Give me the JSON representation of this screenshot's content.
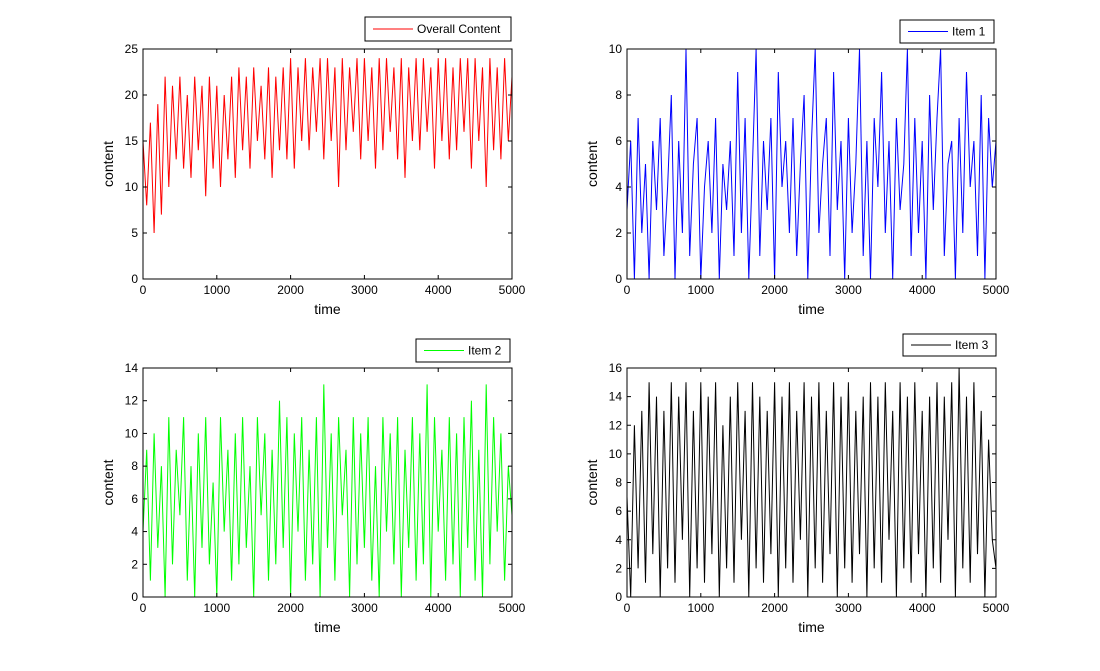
{
  "chart_data": [
    {
      "type": "line",
      "title": "",
      "xlabel": "time",
      "ylabel": "content",
      "xlim": [
        0,
        5000
      ],
      "ylim": [
        0,
        25
      ],
      "xticks": [
        0,
        1000,
        2000,
        3000,
        4000,
        5000
      ],
      "yticks": [
        0,
        5,
        10,
        15,
        20,
        25
      ],
      "legend": "top-right",
      "series": [
        {
          "name": "Overall Content",
          "color": "#ff0000",
          "values": [
            15,
            8,
            17,
            5,
            19,
            7,
            22,
            10,
            21,
            13,
            22,
            12,
            20,
            11,
            22,
            14,
            21,
            9,
            22,
            12,
            21,
            10,
            20,
            13,
            22,
            11,
            23,
            14,
            22,
            12,
            23,
            15,
            21,
            13,
            23,
            11,
            22,
            14,
            23,
            13,
            24,
            12,
            23,
            15,
            24,
            14,
            23,
            16,
            24,
            13,
            24,
            15,
            23,
            10,
            24,
            14,
            23,
            16,
            24,
            13,
            24,
            15,
            23,
            12,
            24,
            14,
            24,
            16,
            23,
            13,
            24,
            11,
            23,
            15,
            24,
            14,
            24,
            16,
            23,
            12,
            24,
            15,
            24,
            13,
            23,
            14,
            24,
            16,
            24,
            12,
            24,
            15,
            23,
            10,
            24,
            14,
            23,
            13,
            24,
            15,
            22
          ]
        }
      ]
    },
    {
      "type": "line",
      "title": "",
      "xlabel": "time",
      "ylabel": "content",
      "xlim": [
        0,
        5000
      ],
      "ylim": [
        0,
        10
      ],
      "xticks": [
        0,
        1000,
        2000,
        3000,
        4000,
        5000
      ],
      "yticks": [
        0,
        2,
        4,
        6,
        8,
        10
      ],
      "legend": "top-right",
      "series": [
        {
          "name": "Item 1",
          "color": "#0000ff",
          "values": [
            3,
            6,
            0,
            7,
            2,
            5,
            0,
            6,
            3,
            7,
            1,
            4,
            8,
            0,
            6,
            2,
            10,
            1,
            5,
            7,
            0,
            4,
            6,
            2,
            7,
            0,
            5,
            3,
            6,
            1,
            9,
            2,
            7,
            0,
            5,
            10,
            1,
            6,
            3,
            7,
            0,
            9,
            4,
            6,
            2,
            7,
            1,
            5,
            8,
            0,
            6,
            10,
            2,
            5,
            7,
            1,
            9,
            3,
            6,
            0,
            7,
            2,
            5,
            10,
            1,
            6,
            0,
            7,
            4,
            9,
            2,
            6,
            0,
            7,
            3,
            5,
            10,
            1,
            7,
            2,
            6,
            0,
            8,
            3,
            7,
            10,
            1,
            5,
            6,
            0,
            7,
            2,
            9,
            4,
            6,
            1,
            8,
            0,
            7,
            4,
            6
          ]
        }
      ]
    },
    {
      "type": "line",
      "title": "",
      "xlabel": "time",
      "ylabel": "content",
      "xlim": [
        0,
        5000
      ],
      "ylim": [
        0,
        14
      ],
      "xticks": [
        0,
        1000,
        2000,
        3000,
        4000,
        5000
      ],
      "yticks": [
        0,
        2,
        4,
        6,
        8,
        10,
        12,
        14
      ],
      "legend": "top-right",
      "series": [
        {
          "name": "Item 2",
          "color": "#00ff00",
          "values": [
            4,
            9,
            1,
            10,
            3,
            8,
            0,
            11,
            2,
            9,
            5,
            11,
            1,
            8,
            0,
            10,
            3,
            11,
            2,
            7,
            0,
            11,
            4,
            9,
            1,
            10,
            2,
            11,
            3,
            8,
            0,
            11,
            5,
            10,
            1,
            9,
            2,
            12,
            3,
            11,
            0,
            10,
            4,
            11,
            1,
            9,
            2,
            11,
            0,
            13,
            3,
            10,
            1,
            11,
            5,
            9,
            0,
            11,
            2,
            10,
            3,
            11,
            1,
            8,
            0,
            11,
            4,
            10,
            2,
            11,
            0,
            9,
            3,
            11,
            1,
            10,
            2,
            13,
            0,
            11,
            4,
            9,
            1,
            11,
            2,
            10,
            0,
            11,
            3,
            12,
            1,
            9,
            0,
            13,
            2,
            11,
            4,
            10,
            1,
            8,
            5
          ]
        }
      ]
    },
    {
      "type": "line",
      "title": "",
      "xlabel": "time",
      "ylabel": "content",
      "xlim": [
        0,
        5000
      ],
      "ylim": [
        0,
        16
      ],
      "xticks": [
        0,
        1000,
        2000,
        3000,
        4000,
        5000
      ],
      "yticks": [
        0,
        2,
        4,
        6,
        8,
        10,
        12,
        14,
        16
      ],
      "legend": "top-right",
      "series": [
        {
          "name": "Item 3",
          "color": "#000000",
          "values": [
            7,
            0,
            12,
            2,
            13,
            1,
            15,
            3,
            14,
            0,
            13,
            2,
            15,
            1,
            14,
            4,
            15,
            0,
            13,
            2,
            15,
            1,
            14,
            3,
            15,
            0,
            12,
            2,
            14,
            1,
            15,
            4,
            13,
            0,
            15,
            2,
            14,
            1,
            13,
            3,
            15,
            0,
            14,
            2,
            15,
            1,
            13,
            4,
            15,
            0,
            14,
            2,
            15,
            1,
            13,
            3,
            15,
            0,
            14,
            2,
            15,
            1,
            13,
            3,
            14,
            0,
            15,
            2,
            14,
            1,
            15,
            4,
            13,
            0,
            15,
            2,
            14,
            1,
            15,
            3,
            13,
            0,
            14,
            2,
            15,
            1,
            14,
            4,
            15,
            0,
            16,
            2,
            14,
            1,
            15,
            3,
            13,
            0,
            11,
            4,
            2
          ]
        }
      ]
    }
  ]
}
